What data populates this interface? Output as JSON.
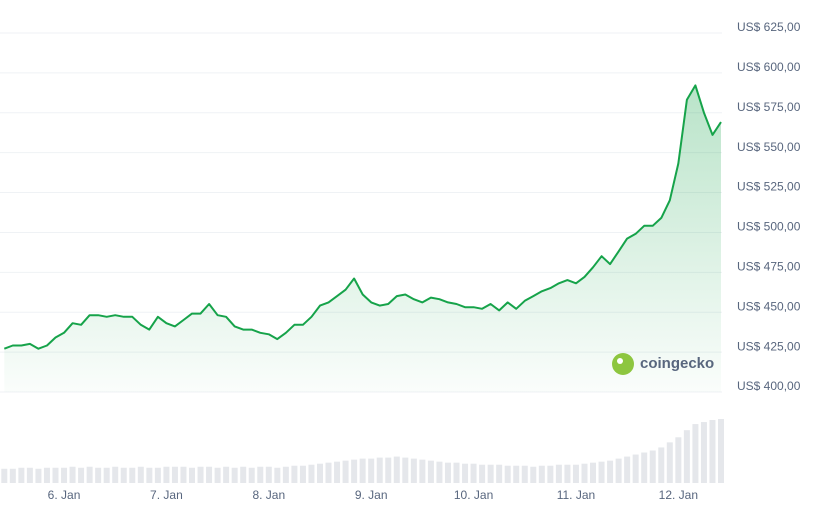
{
  "chart_data": {
    "type": "line",
    "watermark": "coingecko",
    "categories": [
      null,
      null,
      null,
      null,
      null,
      null,
      null,
      "6. Jan",
      null,
      null,
      null,
      null,
      null,
      null,
      null,
      null,
      null,
      null,
      null,
      "7. Jan",
      null,
      null,
      null,
      null,
      null,
      null,
      null,
      null,
      null,
      null,
      null,
      "8. Jan",
      null,
      null,
      null,
      null,
      null,
      null,
      null,
      null,
      null,
      null,
      null,
      "9. Jan",
      null,
      null,
      null,
      null,
      null,
      null,
      null,
      null,
      null,
      null,
      null,
      "10. Jan",
      null,
      null,
      null,
      null,
      null,
      null,
      null,
      null,
      null,
      null,
      null,
      "11. Jan",
      null,
      null,
      null,
      null,
      null,
      null,
      null,
      null,
      null,
      null,
      null,
      "12. Jan",
      null,
      null,
      null,
      null,
      null
    ],
    "series": [
      {
        "color": "#16a34a",
        "values": [
          424,
          426,
          426,
          427,
          424,
          426,
          431,
          434,
          440,
          439,
          445,
          445,
          444,
          445,
          444,
          444,
          439,
          436,
          444,
          440,
          438,
          442,
          446,
          446,
          452,
          445,
          444,
          438,
          436,
          436,
          434,
          433,
          430,
          434,
          439,
          439,
          444,
          451,
          453,
          457,
          461,
          468,
          458,
          453,
          451,
          452,
          457,
          458,
          455,
          453,
          456,
          455,
          453,
          452,
          450,
          450,
          449,
          452,
          448,
          453,
          449,
          454,
          457,
          460,
          462,
          465,
          467,
          465,
          469,
          475,
          482,
          477,
          485,
          493,
          496,
          501,
          501,
          506,
          517,
          540,
          580,
          589,
          572,
          558,
          566
        ]
      }
    ],
    "volumes": {
      "color": "#e5e7eb",
      "values": [
        14,
        14,
        15,
        15,
        14,
        15,
        15,
        15,
        16,
        15,
        16,
        15,
        15,
        16,
        15,
        15,
        16,
        15,
        15,
        16,
        16,
        16,
        15,
        16,
        16,
        15,
        16,
        15,
        16,
        15,
        16,
        16,
        15,
        16,
        17,
        17,
        18,
        19,
        20,
        21,
        22,
        23,
        24,
        24,
        25,
        25,
        26,
        25,
        24,
        23,
        22,
        21,
        20,
        20,
        19,
        19,
        18,
        18,
        18,
        17,
        17,
        17,
        16,
        17,
        17,
        18,
        18,
        18,
        19,
        20,
        21,
        22,
        24,
        26,
        28,
        30,
        32,
        35,
        40,
        45,
        52,
        58,
        60,
        62,
        63
      ]
    },
    "ylim": [
      400,
      625
    ],
    "yticks": [
      {
        "value": 400,
        "label": "US$ 400,00"
      },
      {
        "value": 425,
        "label": "US$ 425,00"
      },
      {
        "value": 450,
        "label": "US$ 450,00"
      },
      {
        "value": 475,
        "label": "US$ 475,00"
      },
      {
        "value": 500,
        "label": "US$ 500,00"
      },
      {
        "value": 525,
        "label": "US$ 525,00"
      },
      {
        "value": 550,
        "label": "US$ 550,00"
      },
      {
        "value": 575,
        "label": "US$ 575,00"
      },
      {
        "value": 600,
        "label": "US$ 600,00"
      },
      {
        "value": 625,
        "label": "US$ 625,00"
      }
    ],
    "grid": true
  }
}
